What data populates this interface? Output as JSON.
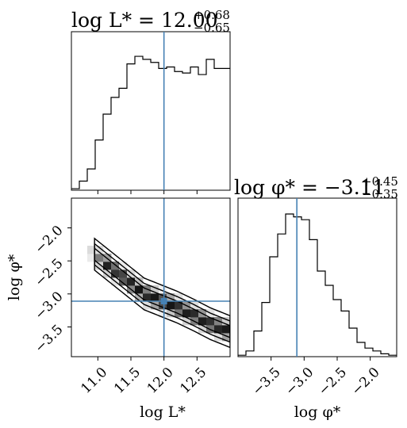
{
  "chart_data": [
    {
      "type": "histogram",
      "panel": "top-left",
      "title": {
        "prefix": "log L* = ",
        "value": "12.00",
        "plus": "+0.68",
        "minus": "−0.65"
      },
      "x_range": [
        10.6,
        13.0
      ],
      "truth_line": 12.0,
      "bin_edges": [
        10.6,
        10.72,
        10.84,
        10.96,
        11.08,
        11.2,
        11.32,
        11.44,
        11.56,
        11.68,
        11.8,
        11.92,
        12.04,
        12.16,
        12.28,
        12.4,
        12.52,
        12.64,
        12.76,
        12.88,
        13.0
      ],
      "counts": [
        0.01,
        0.06,
        0.14,
        0.33,
        0.5,
        0.61,
        0.67,
        0.83,
        0.88,
        0.86,
        0.84,
        0.8,
        0.81,
        0.78,
        0.77,
        0.81,
        0.76,
        0.86,
        0.8,
        0.8
      ]
    },
    {
      "type": "heatmap",
      "panel": "bottom-left",
      "xlabel": "log L*",
      "ylabel": "log φ*",
      "x_range": [
        10.6,
        13.0
      ],
      "y_range": [
        -3.95,
        -1.55
      ],
      "x_ticks": [
        "11.0",
        "11.5",
        "12.0",
        "12.5"
      ],
      "y_ticks": [
        "−2.0",
        "−2.5",
        "−3.0",
        "−3.5"
      ],
      "truth": {
        "x": 12.0,
        "y": -3.11
      },
      "ridge": {
        "x": [
          10.95,
          11.2,
          11.45,
          11.7,
          11.95,
          12.2,
          12.45,
          12.7,
          12.95
        ],
        "y": [
          -2.4,
          -2.6,
          -2.8,
          -3.0,
          -3.1,
          -3.2,
          -3.32,
          -3.45,
          -3.55
        ]
      },
      "contour_half_widths": [
        0.09,
        0.16,
        0.24
      ]
    },
    {
      "type": "histogram",
      "panel": "bottom-right",
      "title": {
        "prefix": "log φ* = ",
        "value": "−3.11",
        "plus": "+0.45",
        "minus": "−0.35"
      },
      "xlabel": "log φ*",
      "x_range": [
        -4.0,
        -1.6
      ],
      "x_ticks": [
        "−3.5",
        "−3.0",
        "−2.5",
        "−2.0"
      ],
      "truth_line": -3.11,
      "bin_edges": [
        -4.0,
        -3.88,
        -3.76,
        -3.64,
        -3.52,
        -3.4,
        -3.28,
        -3.16,
        -3.04,
        -2.92,
        -2.8,
        -2.68,
        -2.56,
        -2.44,
        -2.32,
        -2.2,
        -2.08,
        -1.96,
        -1.84,
        -1.72,
        -1.6
      ],
      "counts": [
        0.01,
        0.04,
        0.18,
        0.38,
        0.7,
        0.86,
        1.0,
        0.98,
        0.96,
        0.82,
        0.6,
        0.5,
        0.4,
        0.32,
        0.2,
        0.1,
        0.06,
        0.04,
        0.02,
        0.01
      ]
    }
  ],
  "colors": {
    "truth": "#4682b4",
    "line": "#000000"
  }
}
